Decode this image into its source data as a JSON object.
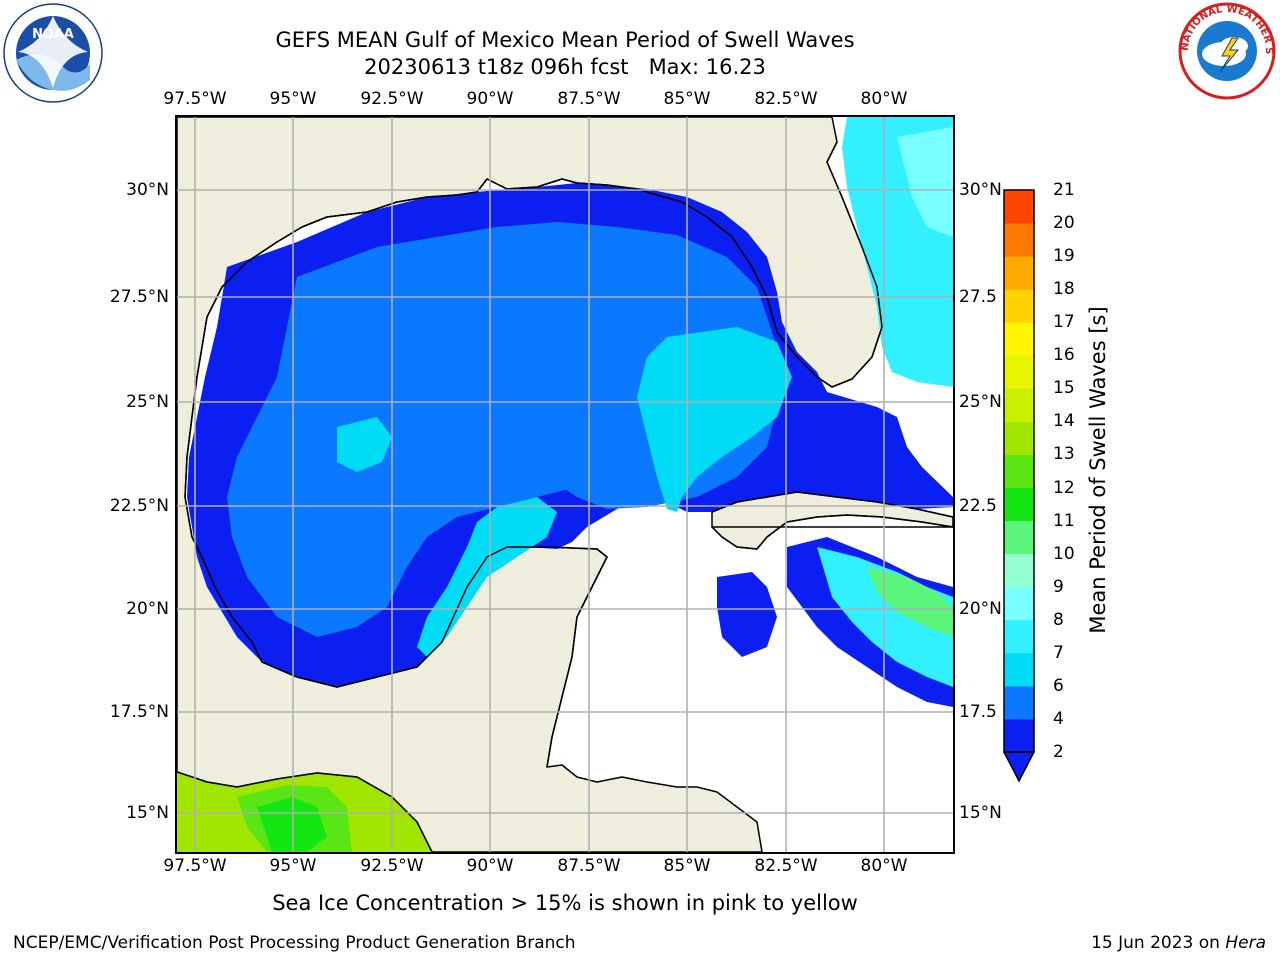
{
  "header": {
    "title_line1": "GEFS MEAN Gulf of Mexico Mean Period of Swell Waves",
    "title_line2": "20230613 t18z 096h fcst   Max: 16.23"
  },
  "map": {
    "lon_ticks": [
      "97.5°W",
      "95°W",
      "92.5°W",
      "90°W",
      "87.5°W",
      "85°W",
      "82.5°W",
      "80°W"
    ],
    "lat_ticks_left": [
      "30°N",
      "27.5°N",
      "25°N",
      "22.5°N",
      "20°N",
      "17.5°N",
      "15°N"
    ],
    "lat_ticks_right": [
      "30°N",
      "27.5",
      "25°N",
      "22.5",
      "20°N",
      "17.5",
      "15°N"
    ],
    "colors": {
      "land": "#efeedd",
      "grid": "#b0b0b0",
      "coast": "#000000"
    }
  },
  "colorbar": {
    "title": "Mean Period of Swell Waves [s]",
    "labels": [
      "2",
      "4",
      "6",
      "7",
      "8",
      "9",
      "10",
      "11",
      "12",
      "13",
      "14",
      "15",
      "16",
      "17",
      "18",
      "19",
      "20",
      "21"
    ],
    "colors": [
      "#0a1ff0",
      "#0a78ff",
      "#00dcf5",
      "#32f0ff",
      "#78ffff",
      "#96ffd2",
      "#5af57a",
      "#14e614",
      "#5ae614",
      "#a0e600",
      "#c8f000",
      "#e6f500",
      "#fff500",
      "#ffd200",
      "#ffaa00",
      "#ff7800",
      "#ff4600",
      "#ff0000"
    ]
  },
  "note": "Sea Ice Concentration > 15% is shown in pink to yellow",
  "footer": {
    "left": "NCEP/EMC/Verification Post Processing Product Generation Branch",
    "right_prefix": "15 Jun 2023 on ",
    "right_host": "Hera"
  },
  "logos": {
    "noaa": "NOAA",
    "nws": "NATIONAL WEATHER SERVICE"
  }
}
